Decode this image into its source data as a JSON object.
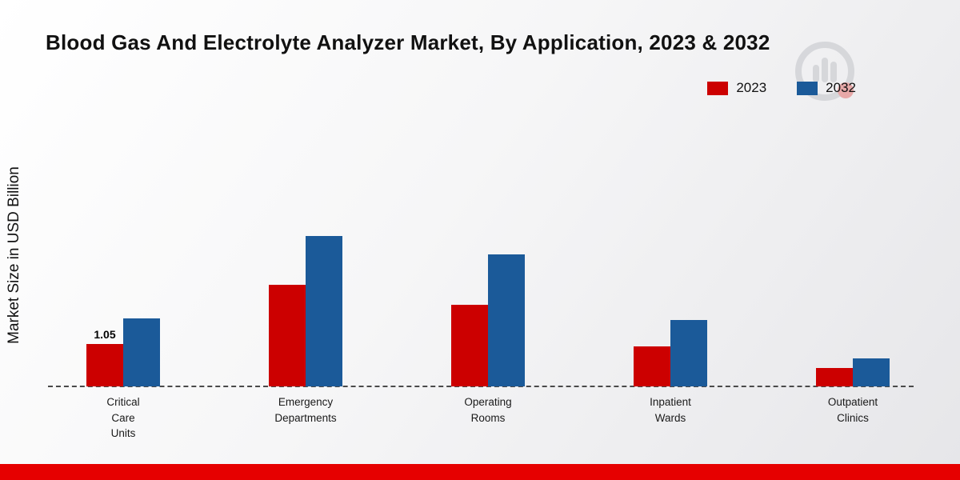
{
  "title": "Blood Gas And Electrolyte Analyzer Market, By Application, 2023 & 2032",
  "ylabel": "Market Size in USD Billion",
  "colors": {
    "series_2023": "#cc0000",
    "series_2032": "#1b5a99",
    "banner": "#e60000",
    "baseline": "#4a4a4a"
  },
  "chart_data": {
    "type": "bar",
    "title": "Blood Gas And Electrolyte Analyzer Market, By Application, 2023 & 2032",
    "xlabel": "",
    "ylabel": "Market Size in USD Billion",
    "ylim": [
      0,
      4
    ],
    "grid": false,
    "legend_position": "top-right",
    "baseline_style": "dashed",
    "categories": [
      "Critical Care Units",
      "Emergency Departments",
      "Operating Rooms",
      "Inpatient Wards",
      "Outpatient Clinics"
    ],
    "category_lines": [
      [
        "Critical",
        "Care",
        "Units"
      ],
      [
        "Emergency",
        "Departments"
      ],
      [
        "Operating",
        "Rooms"
      ],
      [
        "Inpatient",
        "Wards"
      ],
      [
        "Outpatient",
        "Clinics"
      ]
    ],
    "series": [
      {
        "name": "2023",
        "color": "#cc0000",
        "values": [
          1.05,
          2.55,
          2.05,
          1.0,
          0.45
        ]
      },
      {
        "name": "2032",
        "color": "#1b5a99",
        "values": [
          1.7,
          3.75,
          3.3,
          1.65,
          0.7
        ]
      }
    ],
    "annotations": [
      {
        "series": "2023",
        "category": "Critical Care Units",
        "text": "1.05"
      }
    ]
  }
}
